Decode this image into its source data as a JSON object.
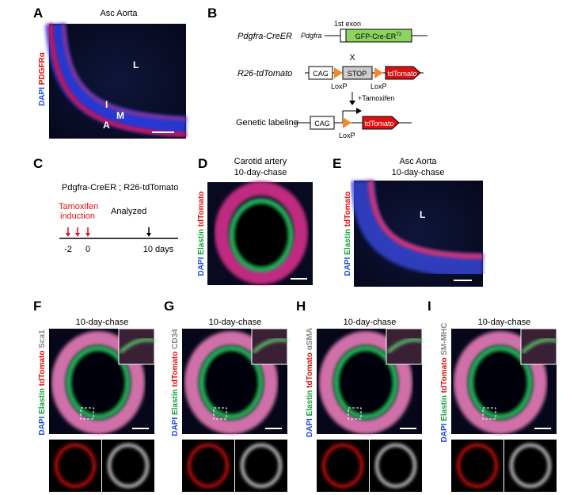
{
  "panels": {
    "a": {
      "letter": "A",
      "title": "Asc Aorta",
      "stain": [
        "DAPI",
        "PDGFRα"
      ],
      "labels": [
        "L",
        "I",
        "M",
        "A"
      ]
    },
    "b": {
      "letter": "B",
      "exon": "1st exon",
      "line1": "Pdgfra-CreER",
      "gene": "Pdgfra",
      "cassette": "GFP-Cre-ER",
      "cassette_sup": "T2",
      "cross": "X",
      "line2": "R26-tdTomato",
      "cag": "CAG",
      "stop": "STOP",
      "reporter": "tdTomato",
      "loxp": [
        "LoxP",
        "LoxP"
      ],
      "treatment": "+Tamoxifen",
      "result": "Genetic labeling",
      "cag2": "CAG",
      "reporter2": "tdTomato",
      "loxp2": "LoxP"
    },
    "c": {
      "letter": "C",
      "genotype": "Pdgfra-CreER ; R26-tdTomato",
      "induction": [
        "Tamoxifen",
        "induction"
      ],
      "analyzed": "Analyzed",
      "timepoints": [
        "-2",
        "0",
        "10 days"
      ]
    },
    "d": {
      "letter": "D",
      "title": [
        "Carotid artery",
        "10-day-chase"
      ],
      "stain": [
        "DAPI",
        "Elastin",
        "tdTomato"
      ]
    },
    "e": {
      "letter": "E",
      "title": [
        "Asc Aorta",
        "10-day-chase"
      ],
      "stain": [
        "DAPI",
        "Elastin",
        "tdTomato"
      ],
      "labels": [
        "L"
      ]
    },
    "f": {
      "letter": "F",
      "title": "10-day-chase",
      "stain": [
        "DAPI",
        "Elastin",
        "tdTomato",
        "Sca1"
      ]
    },
    "g": {
      "letter": "G",
      "title": "10-day-chase",
      "stain": [
        "DAPI",
        "Elastin",
        "tdTomato",
        "CD34"
      ]
    },
    "h": {
      "letter": "H",
      "title": "10-day-chase",
      "stain": [
        "DAPI",
        "Elastin",
        "tdTomato",
        "αSMA"
      ]
    },
    "i": {
      "letter": "I",
      "title": "10-day-chase",
      "stain": [
        "DAPI",
        "Elastin",
        "tdTomato",
        "SM-MHC"
      ]
    }
  }
}
